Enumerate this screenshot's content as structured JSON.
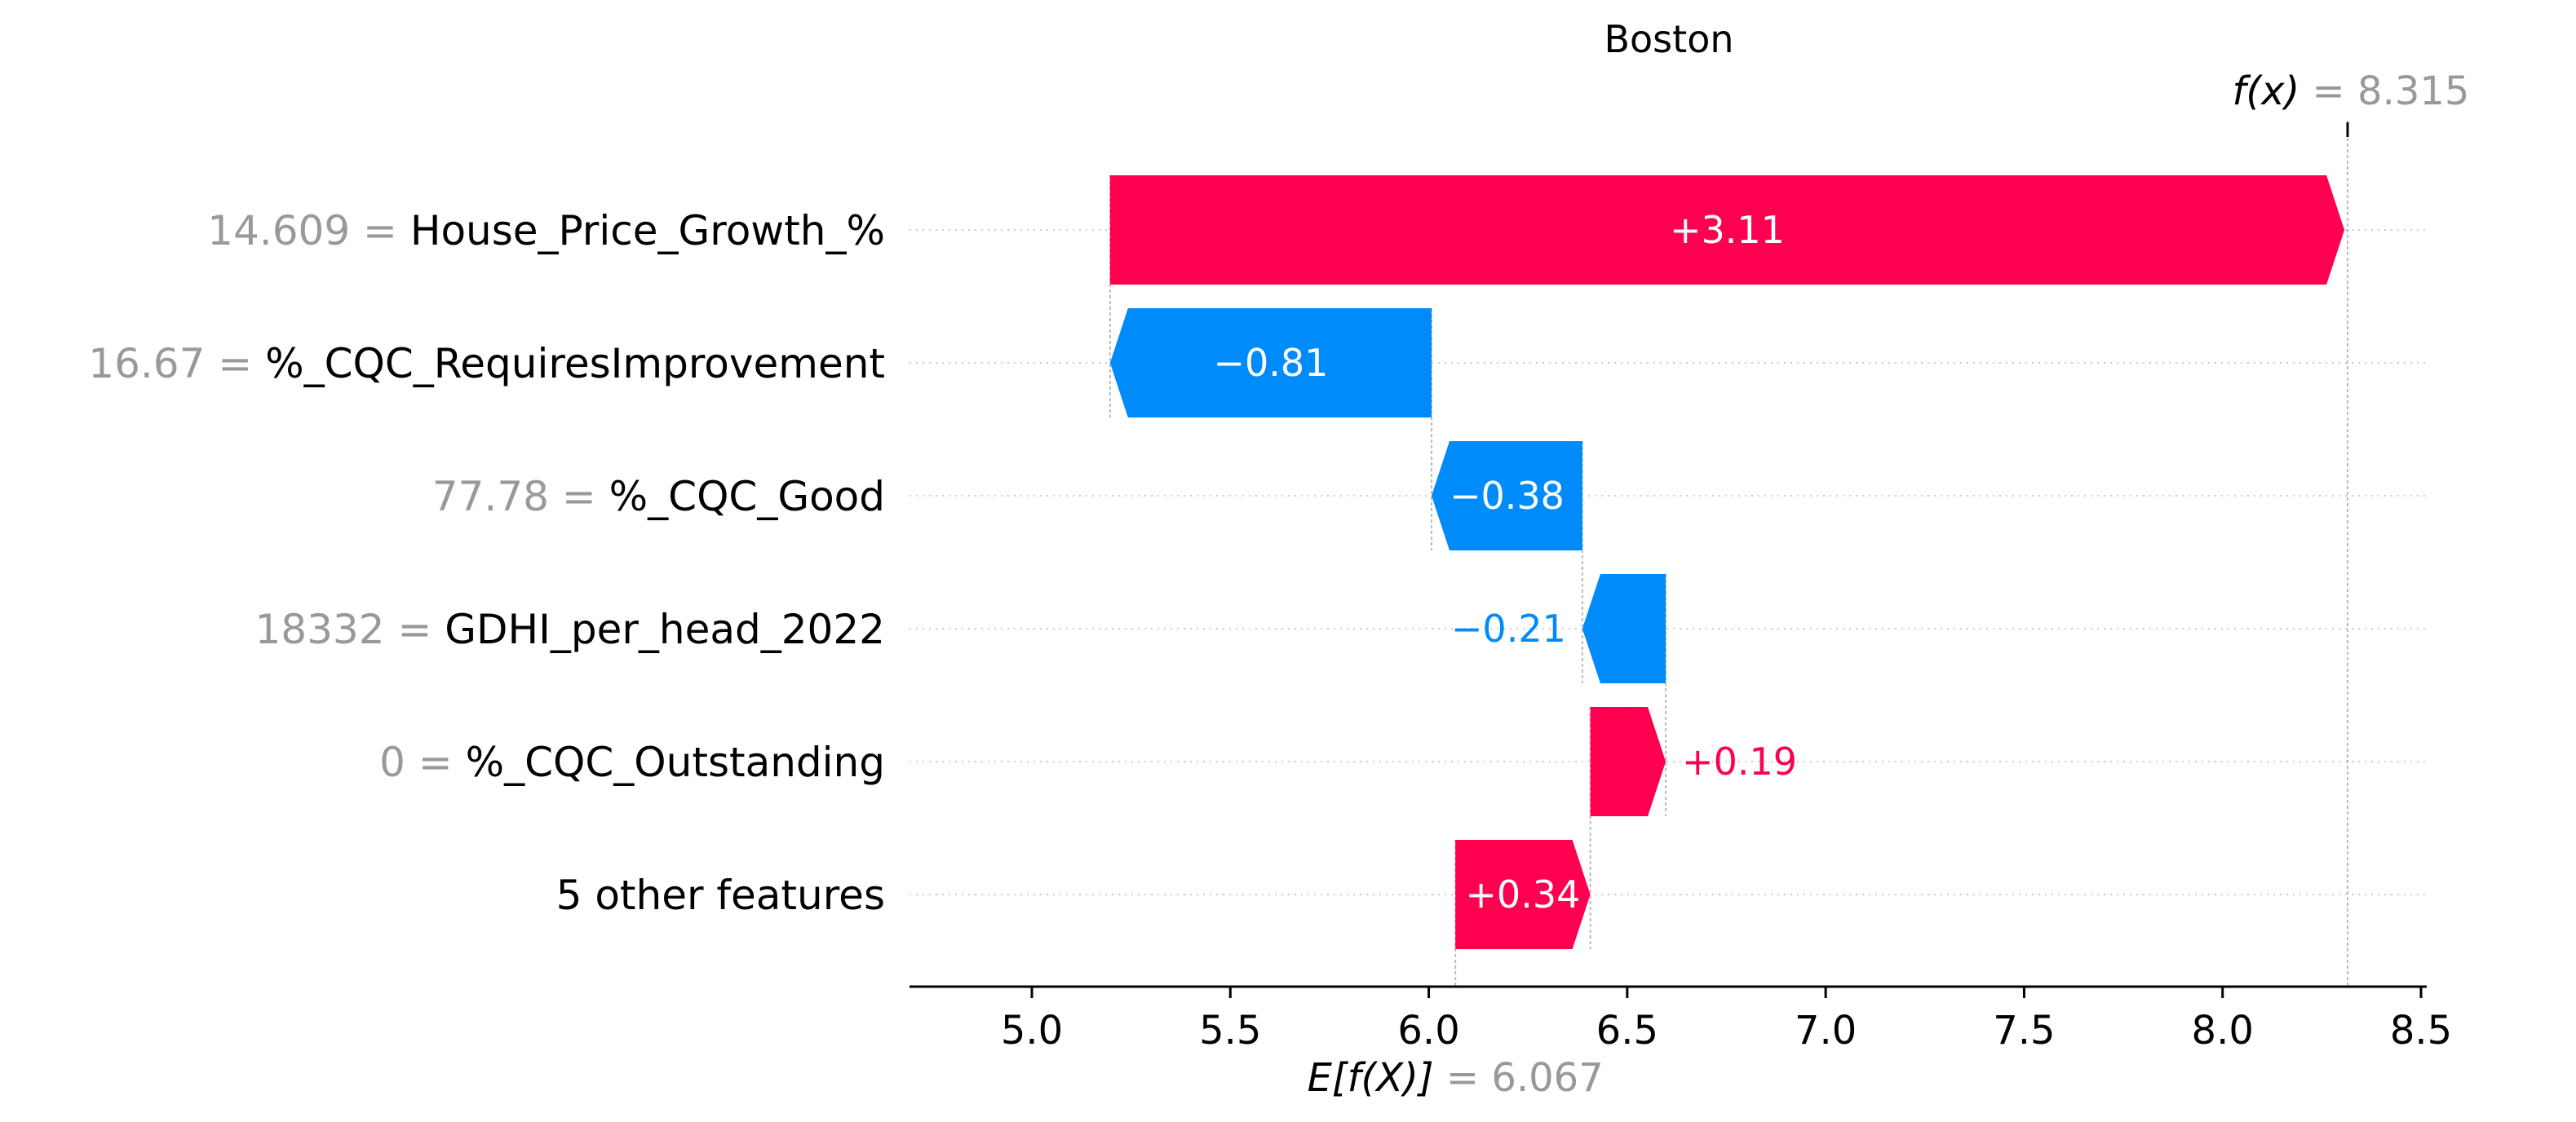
{
  "chart_data": {
    "type": "waterfall",
    "title": "Boston",
    "base_value": 6.067,
    "base_label": "E[f(X)]",
    "base_label_text": "= 6.067",
    "output_value": 8.315,
    "output_label": "f(x)",
    "output_label_text": "= 8.315",
    "xlim": [
      4.7,
      8.5
    ],
    "xticks": [
      "5.0",
      "5.5",
      "6.0",
      "6.5",
      "7.0",
      "7.5",
      "8.0",
      "8.5"
    ],
    "features": [
      {
        "value": "14.609 =",
        "name": "House_Price_Growth_%",
        "contribution": 3.11,
        "label": "+3.11"
      },
      {
        "value": "16.67 =",
        "name": "%_CQC_RequiresImprovement",
        "contribution": -0.81,
        "label": "−0.81"
      },
      {
        "value": "77.78 =",
        "name": "%_CQC_Good",
        "contribution": -0.38,
        "label": "−0.38"
      },
      {
        "value": "18332 =",
        "name": "GDHI_per_head_2022",
        "contribution": -0.21,
        "label": "−0.21"
      },
      {
        "value": "0 =",
        "name": "%_CQC_Outstanding",
        "contribution": 0.19,
        "label": "+0.19"
      },
      {
        "value": "",
        "name": "5 other features",
        "contribution": 0.34,
        "label": "+0.34"
      }
    ],
    "colors": {
      "positive": "#ff0051",
      "negative": "#008bfb",
      "value_gray": "#999999",
      "text": "#000000"
    }
  }
}
